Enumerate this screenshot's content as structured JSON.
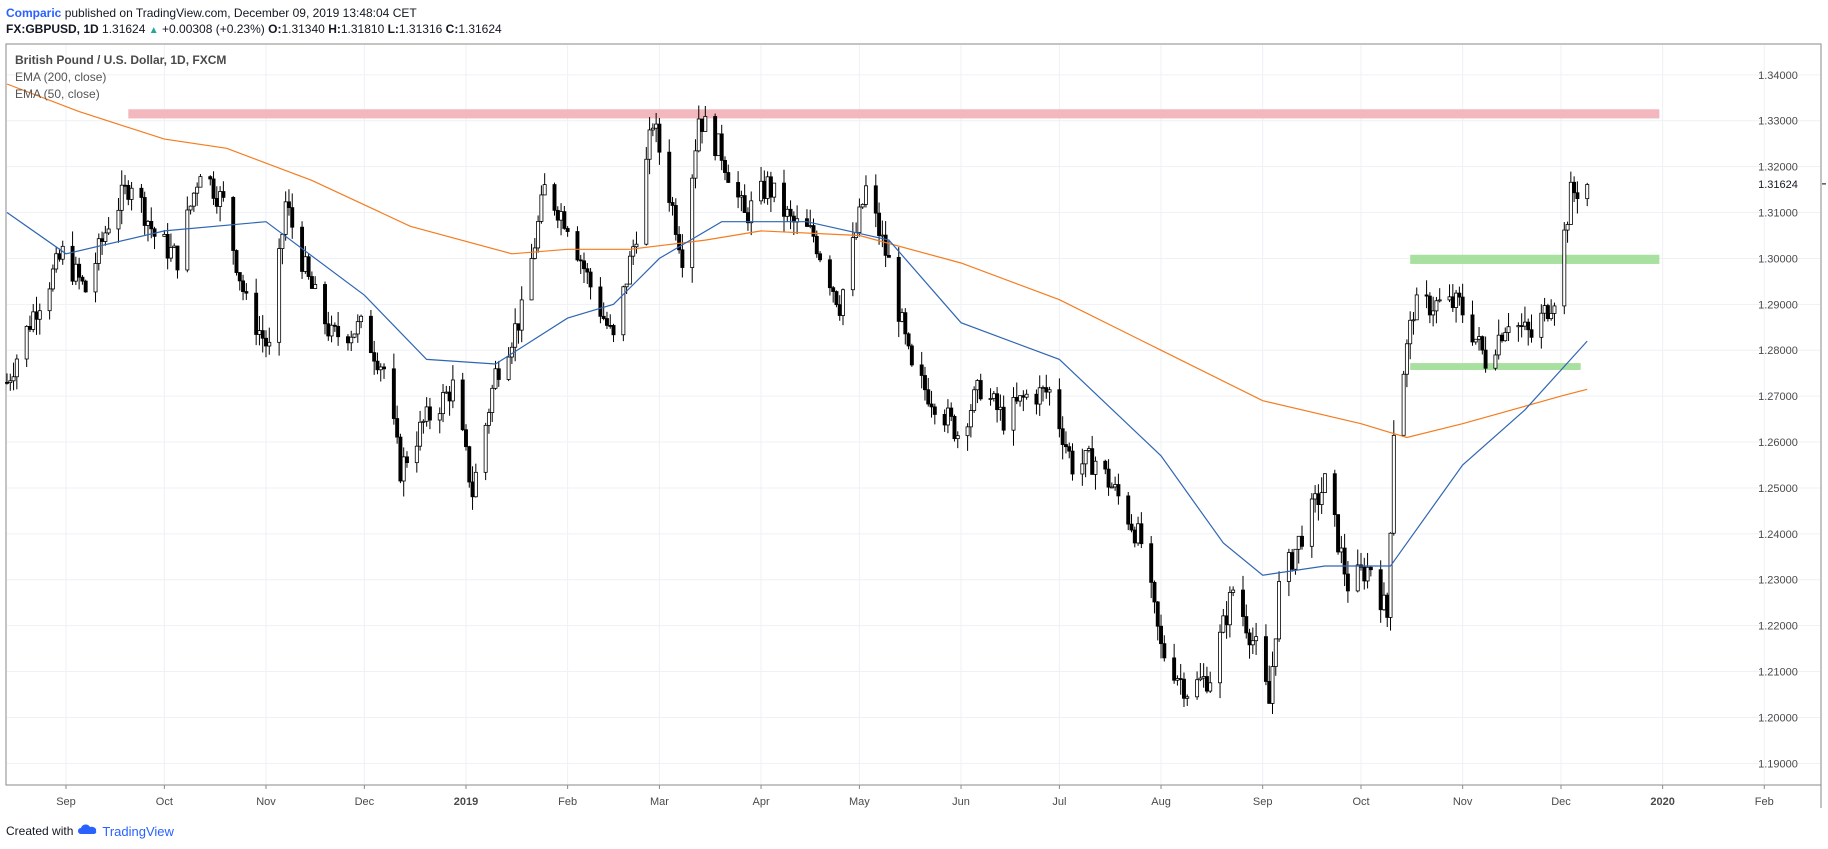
{
  "header": {
    "author": "Comparic",
    "published_text": " published on TradingView.com, December 09, 2019 13:48:04 CET"
  },
  "symbol_bar": {
    "symbol": "FX:GBPUSD, 1D",
    "last": "1.31624",
    "arrow": "▲",
    "change": "+0.00308 (+0.23%)",
    "open_label": "O:",
    "open": "1.31340",
    "high_label": "H:",
    "high": "1.31810",
    "low_label": "L:",
    "low": "1.31316",
    "close_label": "C:",
    "close": "1.31624"
  },
  "legend": {
    "title": "British Pound / U.S. Dollar, 1D, FXCM",
    "ema200": "EMA (200, close)",
    "ema50": "EMA (50, close)"
  },
  "footer": {
    "created_with": "Created with",
    "brand": "TradingView"
  },
  "colors": {
    "ema200": "#f57c1f",
    "ema50": "#2f66b3",
    "resistance": "#f2b8bd",
    "support": "#a8e0a0",
    "candle": "#000000",
    "grid": "#eef1f5",
    "axis_text": "#4a4a4a"
  },
  "chart_data": {
    "type": "candlestick",
    "title": "British Pound / U.S. Dollar, 1D, FXCM",
    "grid": true,
    "y_axis_side": "right",
    "ylim": [
      1.1855,
      1.3465
    ],
    "y_ticks": [
      "1.34000",
      "1.33000",
      "1.32000",
      "1.31000",
      "1.30000",
      "1.29000",
      "1.28000",
      "1.27000",
      "1.26000",
      "1.25000",
      "1.24000",
      "1.23000",
      "1.22000",
      "1.21000",
      "1.20000",
      "1.19000"
    ],
    "last_price_label": "1.31624",
    "x_ticks": [
      {
        "label": "Sep",
        "date": "2018-09-01"
      },
      {
        "label": "Oct",
        "date": "2018-10-01"
      },
      {
        "label": "Nov",
        "date": "2018-11-01"
      },
      {
        "label": "Dec",
        "date": "2018-12-01"
      },
      {
        "label": "2019",
        "date": "2019-01-01"
      },
      {
        "label": "Feb",
        "date": "2019-02-01"
      },
      {
        "label": "Mar",
        "date": "2019-03-01"
      },
      {
        "label": "Apr",
        "date": "2019-04-01"
      },
      {
        "label": "May",
        "date": "2019-05-01"
      },
      {
        "label": "Jun",
        "date": "2019-06-01"
      },
      {
        "label": "Jul",
        "date": "2019-07-01"
      },
      {
        "label": "Aug",
        "date": "2019-08-01"
      },
      {
        "label": "Sep",
        "date": "2019-09-01"
      },
      {
        "label": "Oct",
        "date": "2019-10-01"
      },
      {
        "label": "Nov",
        "date": "2019-11-01"
      },
      {
        "label": "Dec",
        "date": "2019-12-01"
      },
      {
        "label": "2020",
        "date": "2020-01-01"
      },
      {
        "label": "Feb",
        "date": "2020-02-01"
      }
    ],
    "xlim": [
      "2018-08-14",
      "2020-02-18"
    ],
    "price_path": [
      [
        "2018-08-14",
        1.273
      ],
      [
        "2018-08-22",
        1.288
      ],
      [
        "2018-08-31",
        1.301
      ],
      [
        "2018-09-07",
        1.293
      ],
      [
        "2018-09-14",
        1.308
      ],
      [
        "2018-09-21",
        1.317
      ],
      [
        "2018-09-28",
        1.305
      ],
      [
        "2018-10-05",
        1.3
      ],
      [
        "2018-10-12",
        1.32
      ],
      [
        "2018-10-19",
        1.312
      ],
      [
        "2018-10-26",
        1.29
      ],
      [
        "2018-11-02",
        1.28
      ],
      [
        "2018-11-07",
        1.312
      ],
      [
        "2018-11-14",
        1.295
      ],
      [
        "2018-11-21",
        1.283
      ],
      [
        "2018-11-30",
        1.285
      ],
      [
        "2018-12-07",
        1.276
      ],
      [
        "2018-12-12",
        1.254
      ],
      [
        "2018-12-19",
        1.264
      ],
      [
        "2018-12-28",
        1.272
      ],
      [
        "2019-01-03",
        1.249
      ],
      [
        "2019-01-10",
        1.275
      ],
      [
        "2019-01-18",
        1.288
      ],
      [
        "2019-01-25",
        1.315
      ],
      [
        "2019-02-01",
        1.308
      ],
      [
        "2019-02-08",
        1.294
      ],
      [
        "2019-02-15",
        1.282
      ],
      [
        "2019-02-22",
        1.306
      ],
      [
        "2019-02-27",
        1.33
      ],
      [
        "2019-03-05",
        1.311
      ],
      [
        "2019-03-08",
        1.301
      ],
      [
        "2019-03-13",
        1.331
      ],
      [
        "2019-03-20",
        1.323
      ],
      [
        "2019-03-27",
        1.309
      ],
      [
        "2019-04-03",
        1.316
      ],
      [
        "2019-04-10",
        1.308
      ],
      [
        "2019-04-17",
        1.305
      ],
      [
        "2019-04-25",
        1.29
      ],
      [
        "2019-05-03",
        1.315
      ],
      [
        "2019-05-10",
        1.299
      ],
      [
        "2019-05-17",
        1.275
      ],
      [
        "2019-05-24",
        1.269
      ],
      [
        "2019-05-31",
        1.262
      ],
      [
        "2019-06-07",
        1.272
      ],
      [
        "2019-06-14",
        1.265
      ],
      [
        "2019-06-21",
        1.27
      ],
      [
        "2019-06-28",
        1.271
      ],
      [
        "2019-07-05",
        1.255
      ],
      [
        "2019-07-12",
        1.256
      ],
      [
        "2019-07-19",
        1.248
      ],
      [
        "2019-07-26",
        1.238
      ],
      [
        "2019-08-01",
        1.215
      ],
      [
        "2019-08-09",
        1.206
      ],
      [
        "2019-08-16",
        1.209
      ],
      [
        "2019-08-23",
        1.228
      ],
      [
        "2019-08-30",
        1.215
      ],
      [
        "2019-09-03",
        1.203
      ],
      [
        "2019-09-06",
        1.228
      ],
      [
        "2019-09-13",
        1.24
      ],
      [
        "2019-09-20",
        1.251
      ],
      [
        "2019-09-27",
        1.229
      ],
      [
        "2019-10-04",
        1.233
      ],
      [
        "2019-10-09",
        1.222
      ],
      [
        "2019-10-11",
        1.263
      ],
      [
        "2019-10-17",
        1.289
      ],
      [
        "2019-10-23",
        1.29
      ],
      [
        "2019-10-31",
        1.29
      ],
      [
        "2019-11-08",
        1.278
      ],
      [
        "2019-11-15",
        1.287
      ],
      [
        "2019-11-22",
        1.283
      ],
      [
        "2019-11-29",
        1.292
      ],
      [
        "2019-12-04",
        1.314
      ],
      [
        "2019-12-09",
        1.3162
      ]
    ],
    "series": [
      {
        "name": "EMA (200, close)",
        "color": "#f57c1f",
        "points": [
          [
            "2018-08-14",
            1.338
          ],
          [
            "2018-09-05",
            1.332
          ],
          [
            "2018-10-01",
            1.326
          ],
          [
            "2018-10-20",
            1.324
          ],
          [
            "2018-11-15",
            1.317
          ],
          [
            "2018-12-15",
            1.307
          ],
          [
            "2019-01-15",
            1.301
          ],
          [
            "2019-02-01",
            1.302
          ],
          [
            "2019-02-20",
            1.302
          ],
          [
            "2019-03-15",
            1.304
          ],
          [
            "2019-04-01",
            1.306
          ],
          [
            "2019-05-01",
            1.305
          ],
          [
            "2019-06-01",
            1.299
          ],
          [
            "2019-07-01",
            1.291
          ],
          [
            "2019-08-01",
            1.28
          ],
          [
            "2019-09-01",
            1.269
          ],
          [
            "2019-10-01",
            1.264
          ],
          [
            "2019-10-15",
            1.261
          ],
          [
            "2019-11-01",
            1.264
          ],
          [
            "2019-12-01",
            1.27
          ],
          [
            "2019-12-09",
            1.2715
          ]
        ]
      },
      {
        "name": "EMA (50, close)",
        "color": "#2f66b3",
        "points": [
          [
            "2018-08-14",
            1.31
          ],
          [
            "2018-09-01",
            1.301
          ],
          [
            "2018-10-01",
            1.306
          ],
          [
            "2018-11-01",
            1.308
          ],
          [
            "2018-12-01",
            1.292
          ],
          [
            "2018-12-20",
            1.278
          ],
          [
            "2019-01-10",
            1.277
          ],
          [
            "2019-02-01",
            1.287
          ],
          [
            "2019-02-15",
            1.29
          ],
          [
            "2019-03-01",
            1.3
          ],
          [
            "2019-03-20",
            1.308
          ],
          [
            "2019-04-15",
            1.308
          ],
          [
            "2019-05-10",
            1.304
          ],
          [
            "2019-06-01",
            1.286
          ],
          [
            "2019-07-01",
            1.278
          ],
          [
            "2019-08-01",
            1.257
          ],
          [
            "2019-08-20",
            1.238
          ],
          [
            "2019-09-01",
            1.231
          ],
          [
            "2019-09-20",
            1.233
          ],
          [
            "2019-10-10",
            1.233
          ],
          [
            "2019-11-01",
            1.255
          ],
          [
            "2019-11-20",
            1.267
          ],
          [
            "2019-12-09",
            1.282
          ]
        ]
      }
    ],
    "zones": [
      {
        "name": "resistance",
        "color": "#f2b8bd",
        "from": "2018-09-20",
        "to": "2019-12-31",
        "y_low": 1.3305,
        "y_high": 1.3325
      },
      {
        "name": "upper-support",
        "color": "#a8e0a0",
        "from": "2019-10-16",
        "to": "2019-12-31",
        "y_low": 1.2988,
        "y_high": 1.3008
      },
      {
        "name": "lower-support",
        "color": "#a8e0a0",
        "from": "2019-10-16",
        "to": "2019-12-07",
        "y_low": 1.2757,
        "y_high": 1.2772
      }
    ]
  }
}
